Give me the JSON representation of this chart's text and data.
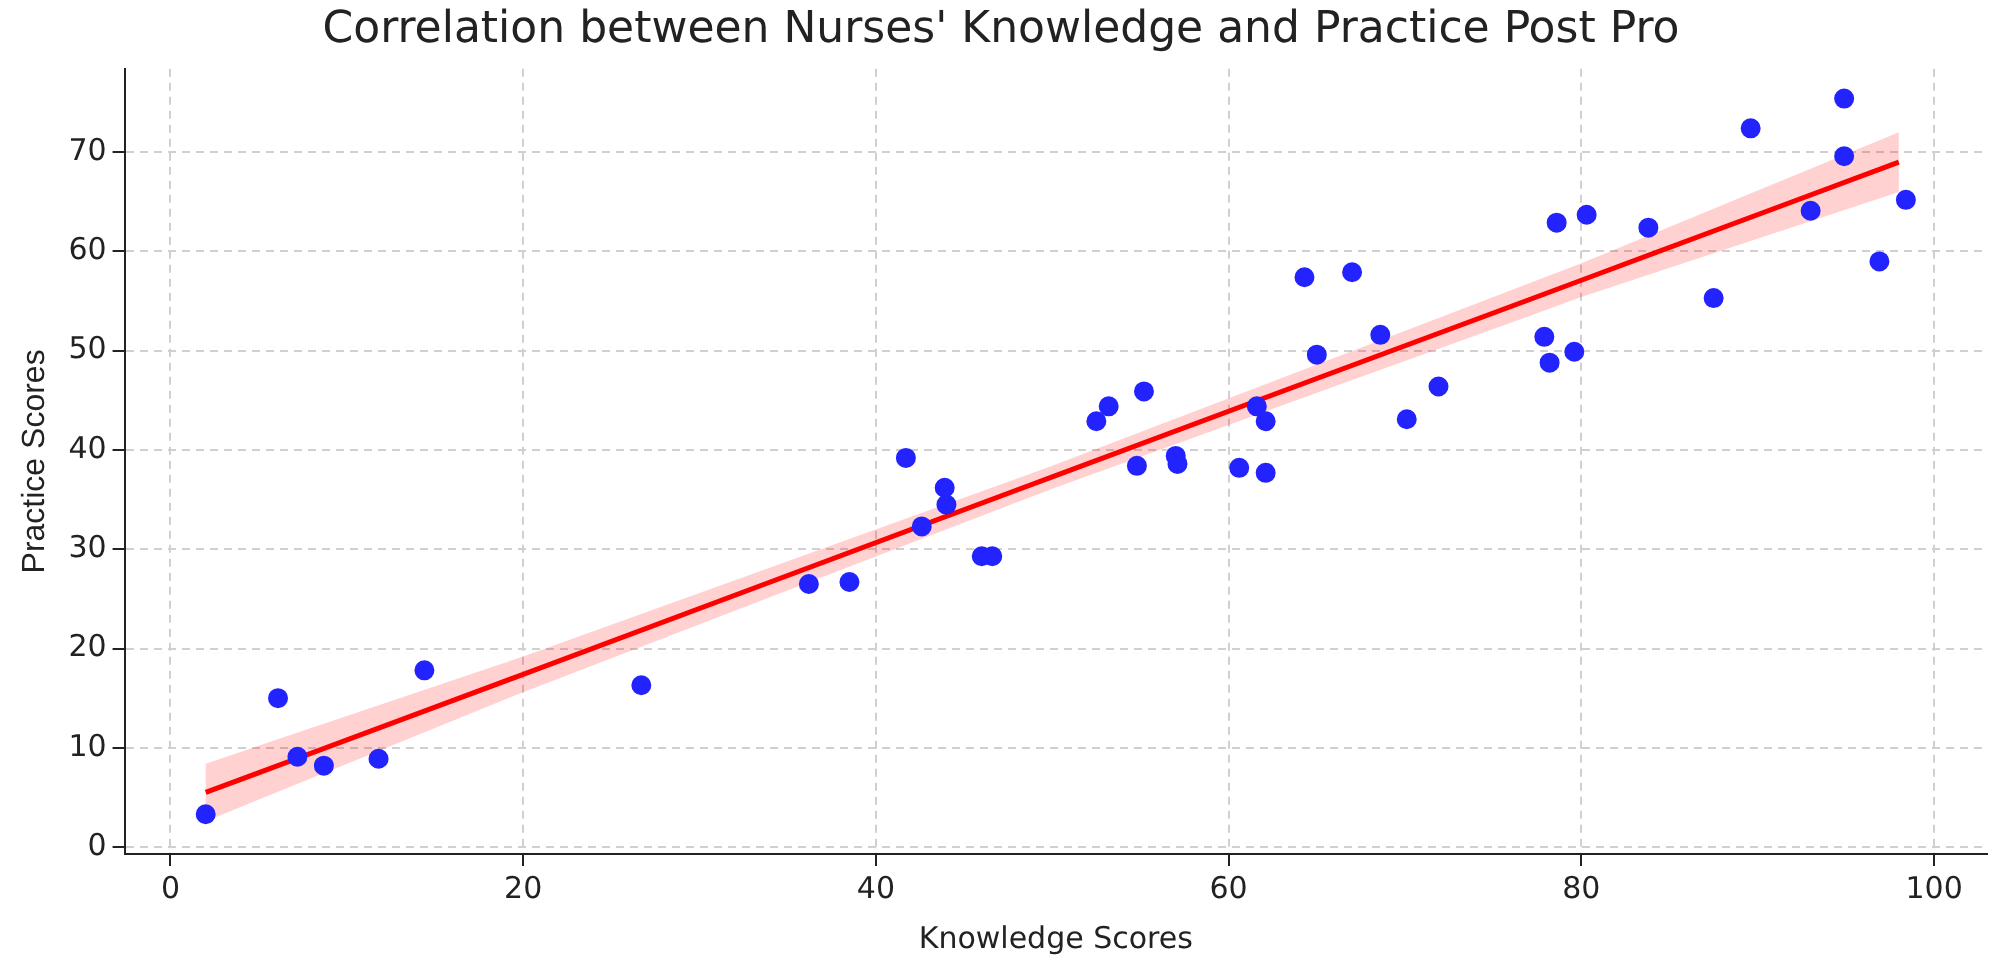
{
  "chart_data": {
    "type": "scatter",
    "title": "Correlation between Nurses' Knowledge and Practice Post Pro",
    "xlabel": "Knowledge Scores",
    "ylabel": "Practice Scores",
    "xlim": [
      -2.6,
      103
    ],
    "ylim": [
      -0.7,
      78.4
    ],
    "xticks": [
      0,
      20,
      40,
      60,
      80,
      100
    ],
    "yticks": [
      0,
      10,
      20,
      30,
      40,
      50,
      60,
      70
    ],
    "grid": true,
    "marker": "circle",
    "series": [
      {
        "type": "scatter",
        "color": "#2323ff",
        "x": [
          2.0,
          6.1,
          7.2,
          8.7,
          11.8,
          14.4,
          26.7,
          36.2,
          38.5,
          41.7,
          42.6,
          43.9,
          44.0,
          46.0,
          46.6,
          52.5,
          53.2,
          54.8,
          55.2,
          57.0,
          57.1,
          60.6,
          61.6,
          62.1,
          62.1,
          64.3,
          65.0,
          67.0,
          68.6,
          70.1,
          71.9,
          77.9,
          78.2,
          78.6,
          79.6,
          80.3,
          83.8,
          87.5,
          89.6,
          93.0,
          94.9,
          94.9,
          96.9,
          98.4
        ],
        "values": [
          3.3,
          15.0,
          9.1,
          8.2,
          8.9,
          17.8,
          16.3,
          26.5,
          26.7,
          39.2,
          32.3,
          36.2,
          34.5,
          29.3,
          29.3,
          42.9,
          44.4,
          38.4,
          45.9,
          39.4,
          38.6,
          38.2,
          44.4,
          42.9,
          37.7,
          57.4,
          49.6,
          57.9,
          51.6,
          43.1,
          46.4,
          51.4,
          48.8,
          62.9,
          49.9,
          63.7,
          62.4,
          55.3,
          72.4,
          64.1,
          75.4,
          69.6,
          59.0,
          65.2
        ]
      },
      {
        "type": "line",
        "marker": "none",
        "color": "#ff0000",
        "x": [
          2,
          20,
          50,
          80,
          98
        ],
        "values": [
          5.5,
          17.4,
          37.3,
          57.1,
          69
        ],
        "lower": [
          2.6,
          15.6,
          36.1,
          55.4,
          66
        ],
        "upper": [
          8.4,
          19.2,
          38.4,
          58.8,
          72
        ]
      }
    ]
  }
}
